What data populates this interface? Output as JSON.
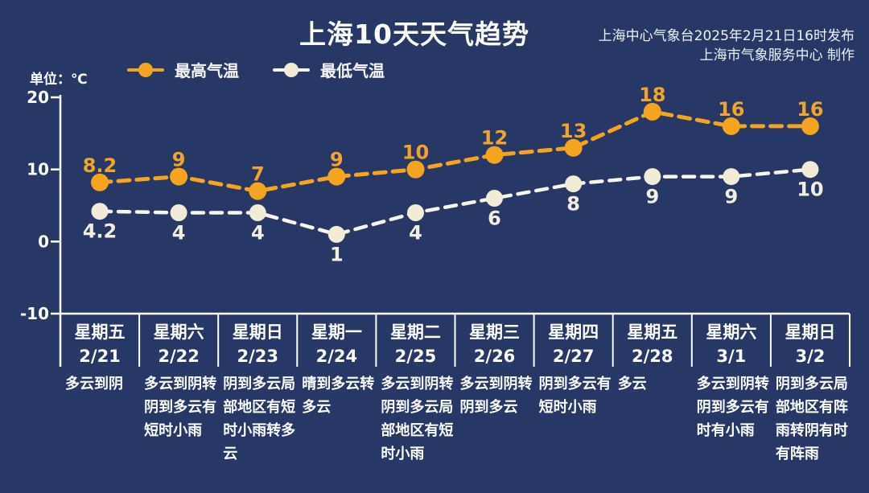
{
  "header": {
    "title": "上海10天天气趋势",
    "publisher_line1": "上海中心气象台2025年2月21日16时发布",
    "publisher_line2": "上海市气象服务中心 制作",
    "unit_label": "单位：℃"
  },
  "legend": {
    "high_label": "最高气温",
    "low_label": "最低气温"
  },
  "colors": {
    "background": "#273867",
    "axis": "#ffffff",
    "high_series": "#f5a41f",
    "low_line": "#f8f5eb",
    "low_marker": "#f2ebd7",
    "low_label": "#f2eee1"
  },
  "chart_data": {
    "type": "line",
    "title": "上海10天天气趋势",
    "ylabel": "单位：℃",
    "ylim": [
      -10,
      20
    ],
    "yticks": [
      20,
      10,
      0,
      -10
    ],
    "grid": false,
    "legend_position": "top-left",
    "categories": [
      {
        "day": "星期五",
        "date": "2/21",
        "weather": "多云到阴"
      },
      {
        "day": "星期六",
        "date": "2/22",
        "weather": "多云到阴转阴到多云有短时小雨"
      },
      {
        "day": "星期日",
        "date": "2/23",
        "weather": "阴到多云局部地区有短时小雨转多云"
      },
      {
        "day": "星期一",
        "date": "2/24",
        "weather": "晴到多云转多云"
      },
      {
        "day": "星期二",
        "date": "2/25",
        "weather": "多云到阴转阴到多云局部地区有短时小雨"
      },
      {
        "day": "星期三",
        "date": "2/26",
        "weather": "多云到阴转阴到多云"
      },
      {
        "day": "星期四",
        "date": "2/27",
        "weather": "阴到多云有短时小雨"
      },
      {
        "day": "星期五",
        "date": "2/28",
        "weather": "多云"
      },
      {
        "day": "星期六",
        "date": "3/1",
        "weather": "多云到阴转阴到多云有时有小雨"
      },
      {
        "day": "星期日",
        "date": "3/2",
        "weather": "阴到多云局部地区有阵雨转阴有时有阵雨"
      }
    ],
    "series": [
      {
        "name": "最高气温",
        "color": "#f5a41f",
        "marker_color": "#f5a41f",
        "label_color": "#f0a42c",
        "values": [
          8.2,
          9,
          7,
          9,
          10,
          12,
          13,
          18,
          16,
          16
        ]
      },
      {
        "name": "最低气温",
        "color": "#f8f5eb",
        "marker_color": "#f2ebd7",
        "label_color": "#f2eee1",
        "values": [
          4.2,
          4,
          4,
          1,
          4,
          6,
          8,
          9,
          9,
          10
        ]
      }
    ]
  }
}
